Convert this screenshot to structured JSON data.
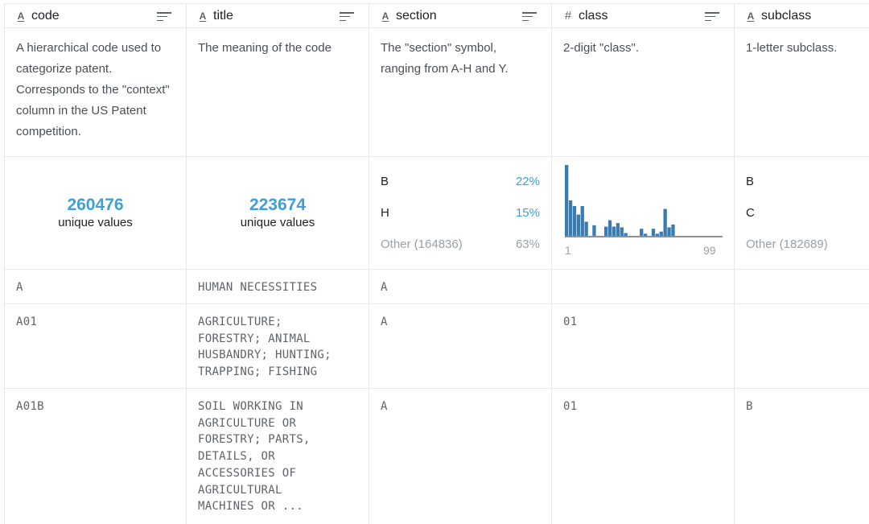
{
  "columns": [
    {
      "name": "code",
      "type": "string",
      "type_icon": "A-underline-icon",
      "description": "A hierarchical code used to categorize patent. Corresponds to the \"context\" column in the US Patent competition."
    },
    {
      "name": "title",
      "type": "string",
      "type_icon": "A-underline-icon",
      "description": "The meaning of the code"
    },
    {
      "name": "section",
      "type": "string",
      "type_icon": "A-underline-icon",
      "description": "The \"section\" symbol, ranging from A-H and Y."
    },
    {
      "name": "class",
      "type": "number",
      "type_icon": "hash-icon",
      "description": "2-digit \"class\"."
    },
    {
      "name": "subclass",
      "type": "string",
      "type_icon": "A-underline-icon",
      "description": "1-letter subclass."
    }
  ],
  "summary": {
    "code": {
      "unique_count": "260476",
      "unique_label": "unique values"
    },
    "title": {
      "unique_count": "223674",
      "unique_label": "unique values"
    },
    "section": {
      "top": [
        {
          "value": "B",
          "percent": "22%"
        },
        {
          "value": "H",
          "percent": "15%"
        }
      ],
      "other": {
        "label": "Other (164836)",
        "percent": "63%"
      }
    },
    "class": {
      "hist_min": "1",
      "hist_max": "99"
    },
    "subclass": {
      "top": [
        {
          "value": "B"
        },
        {
          "value": "C"
        }
      ],
      "other": {
        "label": "Other (182689)"
      }
    }
  },
  "chart_data": {
    "type": "bar",
    "title": "",
    "xlabel": "",
    "ylabel": "",
    "xlim": [
      1,
      99
    ],
    "ylim": [
      0,
      1
    ],
    "categories": [
      "b1",
      "b2",
      "b3",
      "b4",
      "b5",
      "b6",
      "b7",
      "b8",
      "b9",
      "b10",
      "b11",
      "b12",
      "b13",
      "b14",
      "b15",
      "b16",
      "b17",
      "b18",
      "b19",
      "b20",
      "b21",
      "b22",
      "b23",
      "b24",
      "b25",
      "b26",
      "b27",
      "b28",
      "b29",
      "b30",
      "b31",
      "b32",
      "b33",
      "b34",
      "b35",
      "b36",
      "b37",
      "b38",
      "b39",
      "b40"
    ],
    "values": [
      1.0,
      0.5,
      0.42,
      0.3,
      0.42,
      0.2,
      0.0,
      0.15,
      0.0,
      0.0,
      0.13,
      0.22,
      0.13,
      0.18,
      0.12,
      0.04,
      0.0,
      0.0,
      0.0,
      0.1,
      0.03,
      0.0,
      0.1,
      0.03,
      0.06,
      0.38,
      0.12,
      0.16,
      0.0,
      0.0,
      0.0,
      0.0,
      0.0,
      0.0,
      0.0,
      0.0,
      0.0,
      0.0,
      0.0,
      0.0
    ],
    "color": "#3a7bb0",
    "grid": false
  },
  "rows": [
    {
      "code": "A",
      "title": "HUMAN NECESSITIES",
      "section": "A",
      "class": "",
      "subclass": ""
    },
    {
      "code": "A01",
      "title": "AGRICULTURE;\nFORESTRY; ANIMAL\nHUSBANDRY; HUNTING;\nTRAPPING; FISHING",
      "section": "A",
      "class": "01",
      "subclass": ""
    },
    {
      "code": "A01B",
      "title": "SOIL WORKING IN\nAGRICULTURE OR\nFORESTRY; PARTS,\nDETAILS, OR\nACCESSORIES OF\nAGRICULTURAL\nMACHINES OR ...",
      "section": "A",
      "class": "01",
      "subclass": "B"
    }
  ],
  "colors": {
    "accent": "#3f9fd6",
    "histogram": "#3a7bb0",
    "border": "#e8e8e8"
  }
}
